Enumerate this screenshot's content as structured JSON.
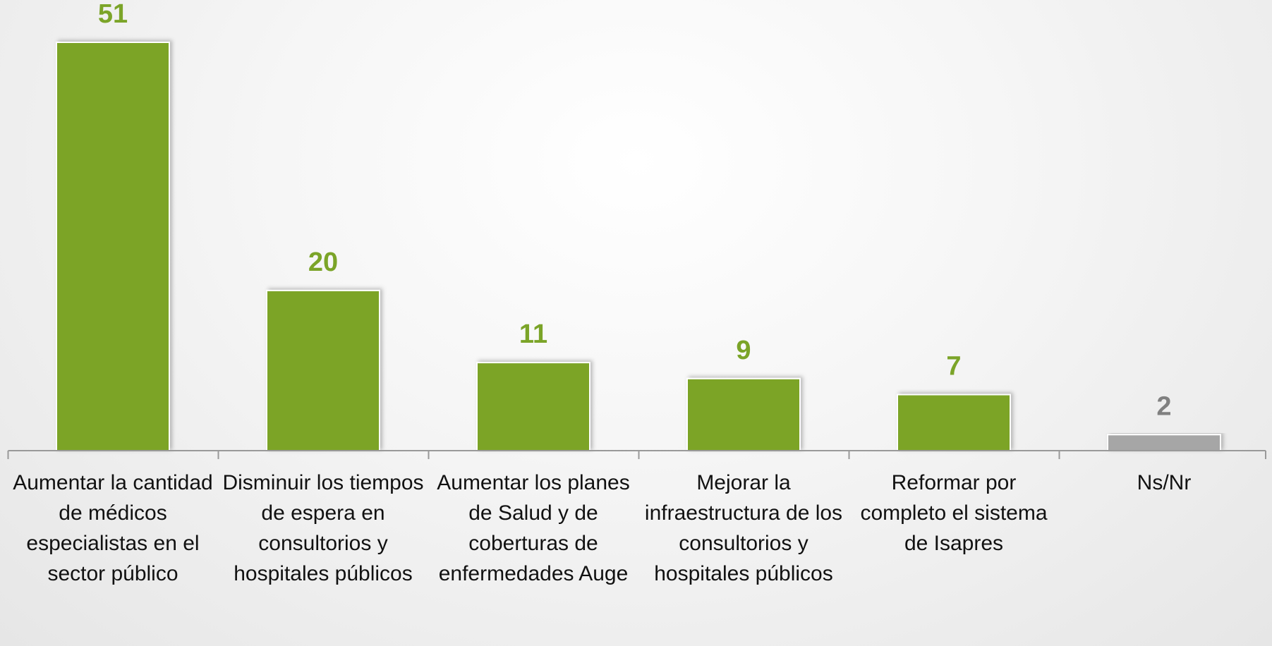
{
  "chart_data": {
    "type": "bar",
    "categories": [
      "Aumentar la cantidad de médicos especialistas en el sector público",
      "Disminuir los tiempos de espera en consultorios y hospitales públicos",
      "Aumentar los planes de Salud y de coberturas de enfermedades Auge",
      "Mejorar la infraestructura de los consultorios y hospitales públicos",
      "Reformar por completo el sistema de Isapres",
      "Ns/Nr"
    ],
    "values": [
      51,
      20,
      11,
      9,
      7,
      2
    ],
    "colors": [
      "#7ba428",
      "#7ba428",
      "#7ba428",
      "#7ba428",
      "#7ba428",
      "#a6a6a6"
    ],
    "label_colors": [
      "#7ba428",
      "#7ba428",
      "#7ba428",
      "#7ba428",
      "#7ba428",
      "#808080"
    ]
  }
}
